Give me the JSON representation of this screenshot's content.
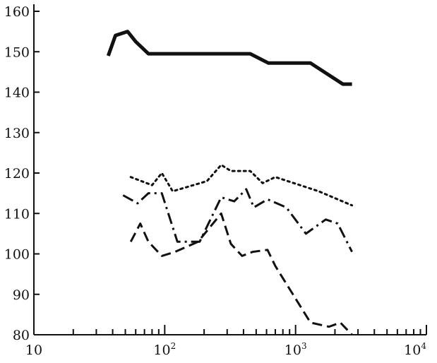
{
  "chart_data": {
    "type": "line",
    "title": "",
    "xlabel": "",
    "ylabel": "",
    "xscale": "log",
    "xlim": [
      10,
      10000
    ],
    "ylim": [
      80,
      162
    ],
    "grid": false,
    "legend": "none",
    "x_ticks": [
      {
        "value": 10,
        "label": "10"
      },
      {
        "value": 100,
        "label": "10",
        "sup": "2"
      },
      {
        "value": 1000,
        "label": "10",
        "sup": "3"
      },
      {
        "value": 10000,
        "label": "10",
        "sup": "4"
      }
    ],
    "y_ticks": [
      80,
      90,
      100,
      110,
      120,
      130,
      140,
      150,
      160
    ],
    "series": [
      {
        "style": "solid",
        "color": "#111111",
        "points": [
          [
            37,
            149
          ],
          [
            42,
            154
          ],
          [
            52,
            155
          ],
          [
            60,
            152.5
          ],
          [
            75,
            149.5
          ],
          [
            200,
            149.5
          ],
          [
            450,
            149.5
          ],
          [
            620,
            147.2
          ],
          [
            1300,
            147.2
          ],
          [
            2300,
            142
          ],
          [
            2700,
            142
          ]
        ]
      },
      {
        "style": "dotted",
        "color": "#111111",
        "points": [
          [
            55,
            119
          ],
          [
            80,
            117
          ],
          [
            95,
            120
          ],
          [
            115,
            115.5
          ],
          [
            210,
            118
          ],
          [
            270,
            122
          ],
          [
            320,
            120.5
          ],
          [
            450,
            120.5
          ],
          [
            560,
            117.5
          ],
          [
            700,
            119
          ],
          [
            1500,
            115.5
          ],
          [
            2700,
            112
          ]
        ]
      },
      {
        "style": "dash-dot",
        "color": "#111111",
        "points": [
          [
            48,
            114.5
          ],
          [
            62,
            112.5
          ],
          [
            75,
            115
          ],
          [
            95,
            115
          ],
          [
            125,
            103
          ],
          [
            185,
            103
          ],
          [
            270,
            114
          ],
          [
            340,
            113
          ],
          [
            420,
            116
          ],
          [
            480,
            111.5
          ],
          [
            610,
            113.5
          ],
          [
            850,
            111.5
          ],
          [
            1200,
            105
          ],
          [
            1700,
            108.5
          ],
          [
            2100,
            107.5
          ],
          [
            2700,
            100.5
          ]
        ]
      },
      {
        "style": "dashed",
        "color": "#111111",
        "points": [
          [
            55,
            103
          ],
          [
            65,
            107.5
          ],
          [
            75,
            103
          ],
          [
            95,
            99.5
          ],
          [
            120,
            100.5
          ],
          [
            180,
            103
          ],
          [
            270,
            110
          ],
          [
            320,
            102.5
          ],
          [
            390,
            99.5
          ],
          [
            470,
            100.5
          ],
          [
            610,
            101
          ],
          [
            700,
            97
          ],
          [
            1300,
            83
          ],
          [
            1800,
            82
          ],
          [
            2200,
            83
          ],
          [
            2700,
            80
          ]
        ]
      }
    ]
  }
}
